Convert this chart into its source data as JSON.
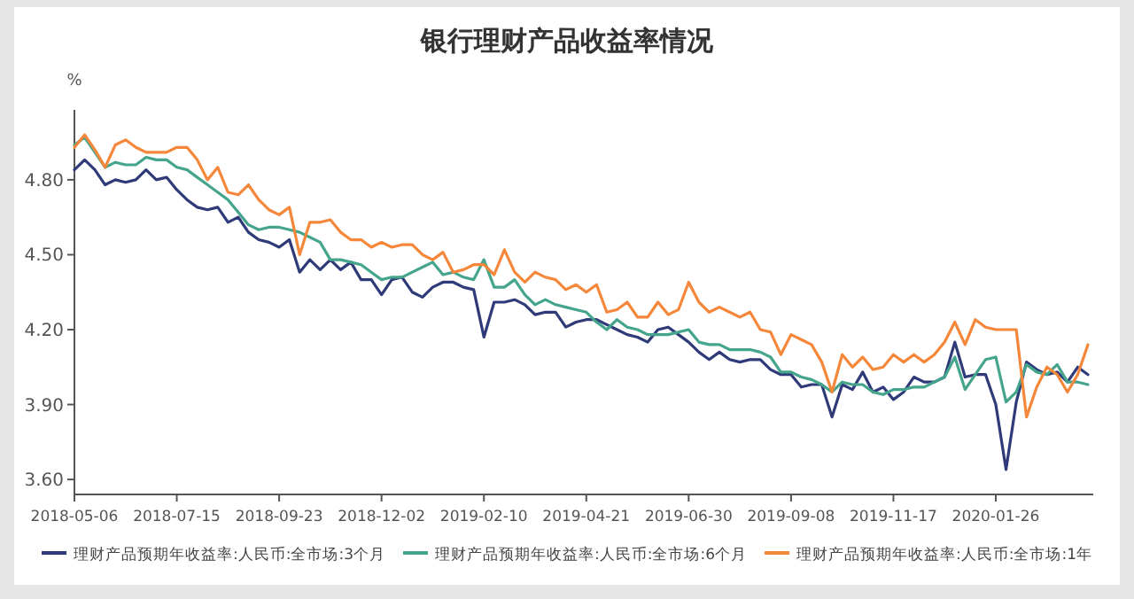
{
  "chart_data": {
    "type": "line",
    "title": "银行理财产品收益率情况",
    "ylabel": "%",
    "categories": [
      "2018-05-06",
      null,
      null,
      null,
      null,
      null,
      null,
      null,
      null,
      null,
      "2018-07-15",
      null,
      null,
      null,
      null,
      null,
      null,
      null,
      null,
      null,
      "2018-09-23",
      null,
      null,
      null,
      null,
      null,
      null,
      null,
      null,
      null,
      "2018-12-02",
      null,
      null,
      null,
      null,
      null,
      null,
      null,
      null,
      null,
      "2019-02-10",
      null,
      null,
      null,
      null,
      null,
      null,
      null,
      null,
      null,
      "2019-04-21",
      null,
      null,
      null,
      null,
      null,
      null,
      null,
      null,
      null,
      "2019-06-30",
      null,
      null,
      null,
      null,
      null,
      null,
      null,
      null,
      null,
      "2019-09-08",
      null,
      null,
      null,
      null,
      null,
      null,
      null,
      null,
      null,
      "2019-11-17",
      null,
      null,
      null,
      null,
      null,
      null,
      null,
      null,
      null,
      "2020-01-26",
      null,
      null,
      null,
      null,
      null,
      null,
      null,
      null,
      null
    ],
    "ylim": [
      3.54,
      5.08
    ],
    "yticks": [
      {
        "value": 3.6,
        "label": "3.60"
      },
      {
        "value": 3.9,
        "label": "3.90"
      },
      {
        "value": 4.2,
        "label": "4.20"
      },
      {
        "value": 4.5,
        "label": "4.50"
      },
      {
        "value": 4.8,
        "label": "4.80"
      }
    ],
    "legend": "bottom",
    "series": [
      {
        "name": "理财产品预期年收益率:人民币:全市场:3个月",
        "color": "#2f3a78",
        "values": [
          4.84,
          4.88,
          4.84,
          4.78,
          4.8,
          4.79,
          4.8,
          4.84,
          4.8,
          4.81,
          4.76,
          4.72,
          4.69,
          4.68,
          4.69,
          4.63,
          4.65,
          4.59,
          4.56,
          4.55,
          4.53,
          4.56,
          4.43,
          4.48,
          4.44,
          4.48,
          4.44,
          4.47,
          4.4,
          4.4,
          4.34,
          4.4,
          4.41,
          4.35,
          4.33,
          4.37,
          4.39,
          4.39,
          4.37,
          4.36,
          4.17,
          4.31,
          4.31,
          4.32,
          4.3,
          4.26,
          4.27,
          4.27,
          4.21,
          4.23,
          4.24,
          4.24,
          4.22,
          4.2,
          4.18,
          4.17,
          4.15,
          4.2,
          4.21,
          4.18,
          4.15,
          4.11,
          4.08,
          4.11,
          4.08,
          4.07,
          4.08,
          4.08,
          4.04,
          4.02,
          4.02,
          3.97,
          3.98,
          3.98,
          3.85,
          3.98,
          3.96,
          4.03,
          3.95,
          3.97,
          3.92,
          3.95,
          4.01,
          3.99,
          3.99,
          4.01,
          4.15,
          4.01,
          4.02,
          4.02,
          3.9,
          3.64,
          3.91,
          4.07,
          4.04,
          4.02,
          4.03,
          3.99,
          4.05,
          4.02
        ]
      },
      {
        "name": "理财产品预期年收益率:人民币:全市场:6个月",
        "color": "#45a58c",
        "values": [
          4.94,
          4.97,
          4.91,
          4.85,
          4.87,
          4.86,
          4.86,
          4.89,
          4.88,
          4.88,
          4.85,
          4.84,
          4.81,
          4.78,
          4.75,
          4.72,
          4.67,
          4.62,
          4.6,
          4.61,
          4.61,
          4.6,
          4.59,
          4.57,
          4.55,
          4.48,
          4.48,
          4.47,
          4.46,
          4.43,
          4.4,
          4.41,
          4.41,
          4.43,
          4.45,
          4.47,
          4.42,
          4.43,
          4.41,
          4.4,
          4.48,
          4.37,
          4.37,
          4.4,
          4.34,
          4.3,
          4.32,
          4.3,
          4.29,
          4.28,
          4.27,
          4.23,
          4.2,
          4.24,
          4.21,
          4.2,
          4.18,
          4.18,
          4.18,
          4.19,
          4.2,
          4.15,
          4.14,
          4.14,
          4.12,
          4.12,
          4.12,
          4.11,
          4.09,
          4.03,
          4.03,
          4.01,
          4.0,
          3.98,
          3.95,
          3.99,
          3.98,
          3.98,
          3.95,
          3.94,
          3.96,
          3.96,
          3.97,
          3.97,
          3.99,
          4.01,
          4.09,
          3.96,
          4.02,
          4.08,
          4.09,
          3.91,
          3.95,
          4.06,
          4.03,
          4.02,
          4.06,
          3.99,
          3.99,
          3.98
        ]
      },
      {
        "name": "理财产品预期年收益率:人民币:全市场:1年",
        "color": "#f5873a",
        "values": [
          4.93,
          4.98,
          4.92,
          4.85,
          4.94,
          4.96,
          4.93,
          4.91,
          4.91,
          4.91,
          4.93,
          4.93,
          4.88,
          4.8,
          4.85,
          4.75,
          4.74,
          4.78,
          4.72,
          4.68,
          4.66,
          4.69,
          4.5,
          4.63,
          4.63,
          4.64,
          4.59,
          4.56,
          4.56,
          4.53,
          4.55,
          4.53,
          4.54,
          4.54,
          4.5,
          4.48,
          4.51,
          4.43,
          4.44,
          4.46,
          4.46,
          4.42,
          4.52,
          4.43,
          4.39,
          4.43,
          4.41,
          4.4,
          4.36,
          4.38,
          4.35,
          4.38,
          4.27,
          4.28,
          4.31,
          4.25,
          4.25,
          4.31,
          4.26,
          4.28,
          4.39,
          4.31,
          4.27,
          4.29,
          4.27,
          4.25,
          4.27,
          4.2,
          4.19,
          4.1,
          4.18,
          4.16,
          4.14,
          4.07,
          3.95,
          4.1,
          4.05,
          4.09,
          4.04,
          4.05,
          4.1,
          4.07,
          4.1,
          4.07,
          4.1,
          4.15,
          4.23,
          4.14,
          4.24,
          4.21,
          4.2,
          4.2,
          4.2,
          3.85,
          3.97,
          4.05,
          4.02,
          3.95,
          4.02,
          4.14
        ]
      }
    ]
  }
}
